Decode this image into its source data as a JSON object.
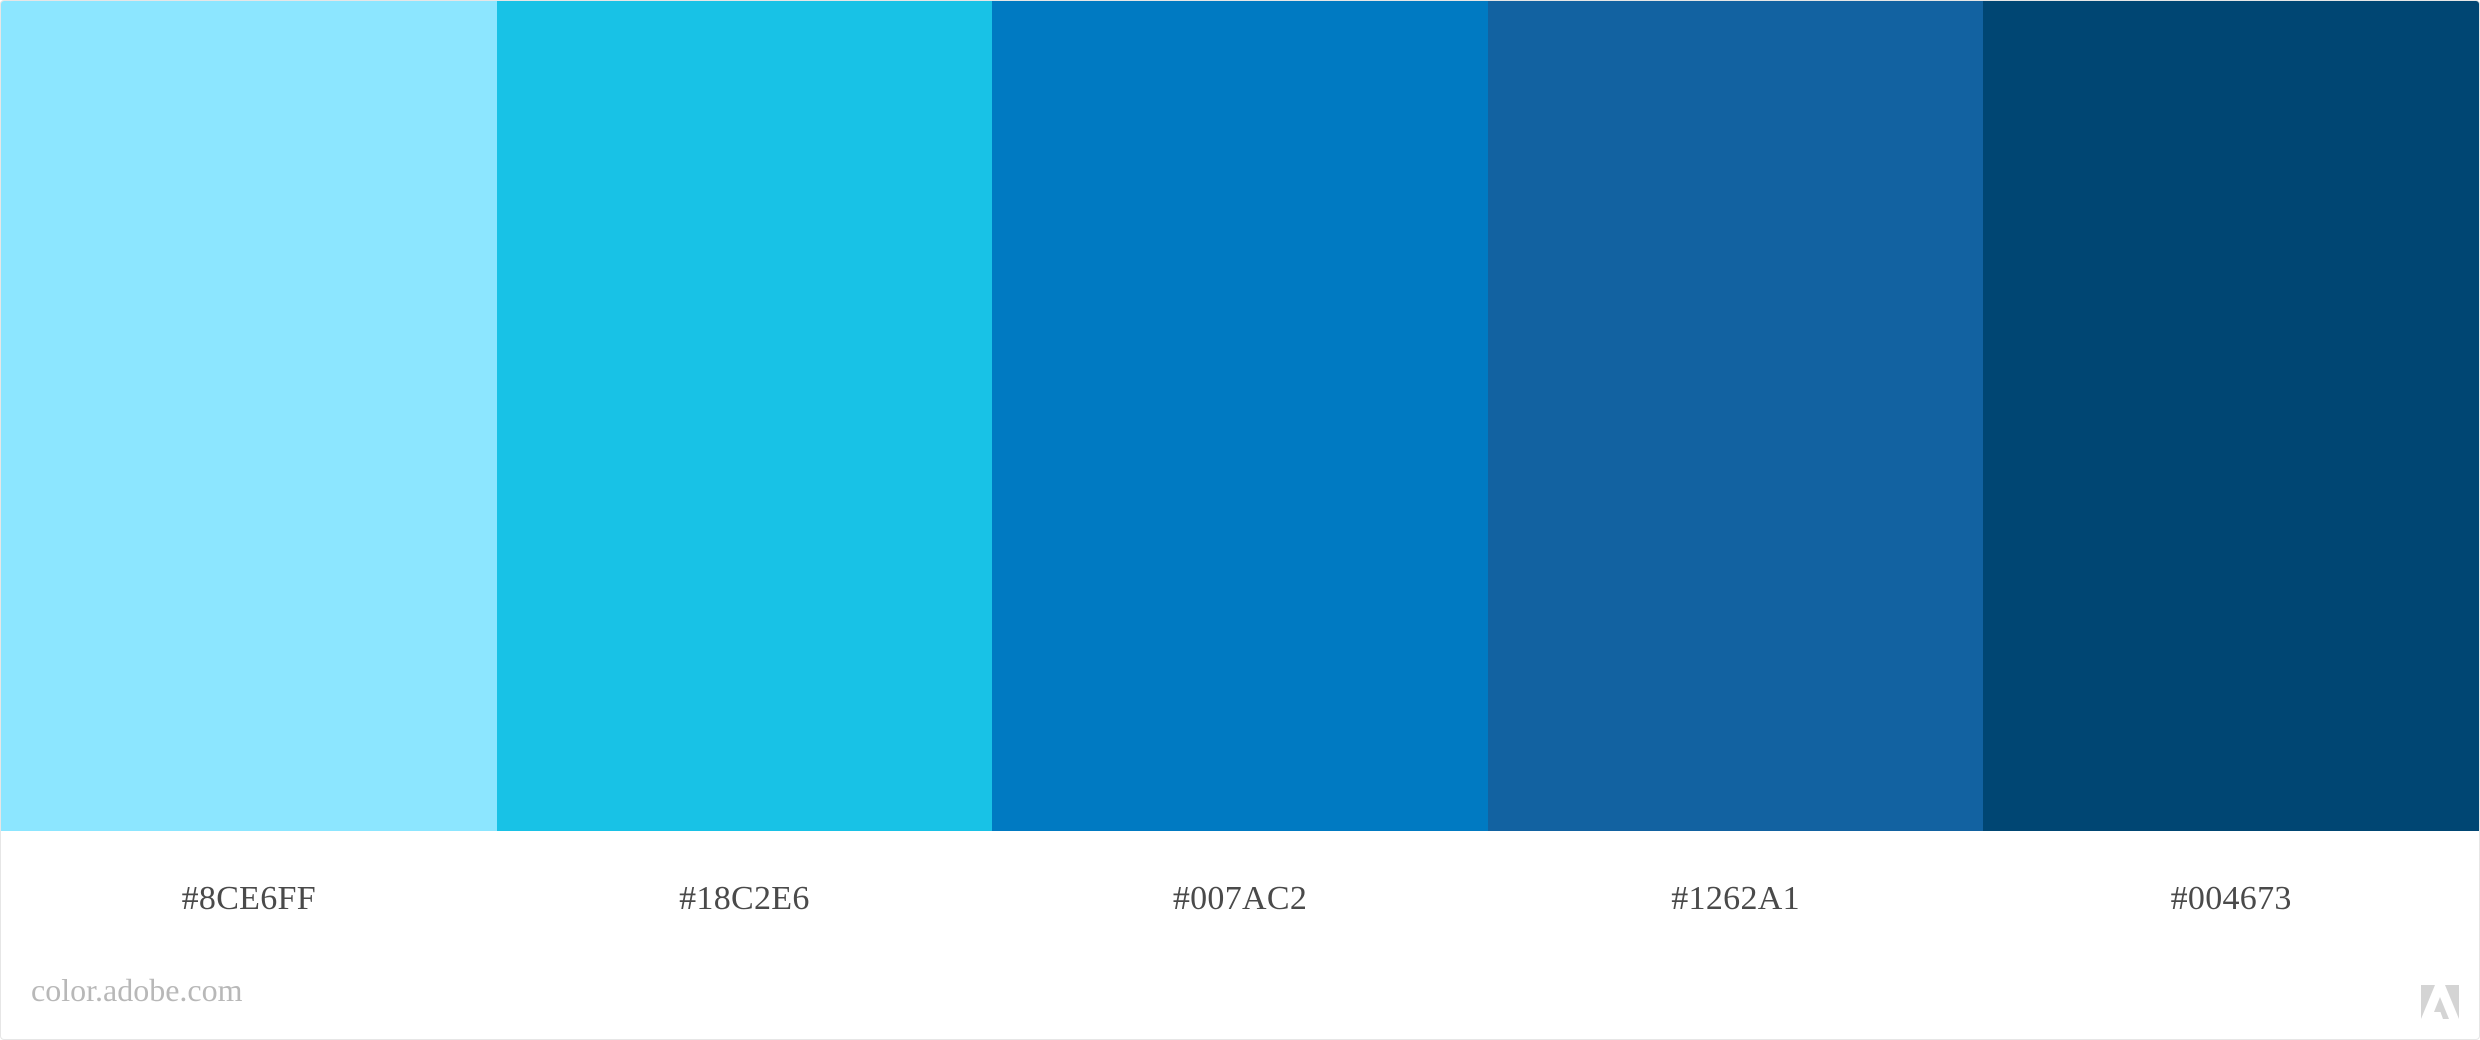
{
  "palette": {
    "swatches": [
      {
        "hex": "#8CE6FF",
        "color": "#8CE6FF"
      },
      {
        "hex": "#18C2E6",
        "color": "#18C2E6"
      },
      {
        "hex": "#007AC2",
        "color": "#007AC2"
      },
      {
        "hex": "#1262A1",
        "color": "#1262A1"
      },
      {
        "hex": "#004673",
        "color": "#004673"
      }
    ]
  },
  "footer": {
    "site": "color.adobe.com",
    "logo_icon": "adobe-logo-icon"
  },
  "colors": {
    "label_text": "#4a4a4a",
    "footer_text": "#b8b8b8",
    "logo": "#d4d4d4",
    "border": "#e6e6e6"
  }
}
